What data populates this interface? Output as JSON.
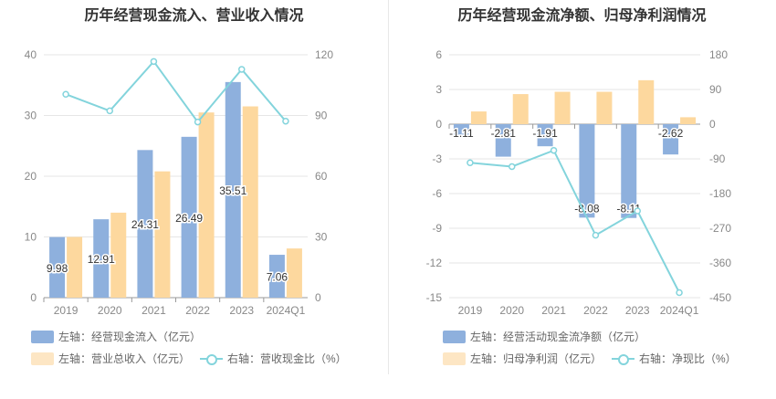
{
  "chart_data": [
    {
      "type": "bar",
      "title": "历年经营现金流入、营业收入情况",
      "categories": [
        "2019",
        "2020",
        "2021",
        "2022",
        "2023",
        "2024Q1"
      ],
      "series": [
        {
          "name": "左轴：经营现金流入（亿元）",
          "axis": "left",
          "color": "#8eb0dd",
          "values": [
            9.98,
            12.91,
            24.31,
            26.49,
            35.51,
            7.06
          ]
        },
        {
          "name": "左轴：营业总收入（亿元）",
          "axis": "left",
          "color": "#fdd89e",
          "values": [
            10.0,
            14.0,
            20.8,
            30.5,
            31.5,
            8.1
          ]
        },
        {
          "name": "右轴：营收现金比（%）",
          "axis": "right",
          "type": "line",
          "color": "#83d4dc",
          "values": [
            100.5,
            92.3,
            116.7,
            86.8,
            112.8,
            87.2
          ]
        }
      ],
      "data_labels": [
        "9.98",
        "12.91",
        "24.31",
        "26.49",
        "35.51",
        "7.06"
      ],
      "ylim_left": [
        0,
        40
      ],
      "yticks_left": [
        0,
        10,
        20,
        30,
        40
      ],
      "ylim_right": [
        0,
        120
      ],
      "yticks_right": [
        0,
        30,
        60,
        90,
        120
      ],
      "grid": true,
      "legend_position": "bottom-left"
    },
    {
      "type": "bar",
      "title": "历年经营现金流净额、归母净利润情况",
      "categories": [
        "2019",
        "2020",
        "2021",
        "2022",
        "2023",
        "2024Q1"
      ],
      "series": [
        {
          "name": "左轴：经营活动现金流净额（亿元）",
          "axis": "left",
          "color": "#8eb0dd",
          "values": [
            -1.11,
            -2.81,
            -1.91,
            -8.08,
            -8.11,
            -2.62
          ]
        },
        {
          "name": "左轴：归母净利润（亿元）",
          "axis": "left",
          "color": "#fdd89e",
          "values": [
            1.1,
            2.6,
            2.8,
            2.8,
            3.8,
            0.6
          ]
        },
        {
          "name": "右轴：净现比（%）",
          "axis": "right",
          "type": "line",
          "color": "#83d4dc",
          "values": [
            -100,
            -110,
            -68,
            -288,
            -225,
            -437
          ]
        }
      ],
      "data_labels": [
        "-1.11",
        "-2.81",
        "-1.91",
        "-8.08",
        "-8.11",
        "-2.62"
      ],
      "ylim_left": [
        -15,
        6
      ],
      "yticks_left": [
        -15,
        -12,
        -9,
        -6,
        -3,
        0,
        3,
        6
      ],
      "ylim_right": [
        -450,
        180
      ],
      "yticks_right": [
        -450,
        -360,
        -270,
        -180,
        -90,
        0,
        90,
        180
      ],
      "grid": true,
      "legend_position": "bottom-left"
    }
  ]
}
